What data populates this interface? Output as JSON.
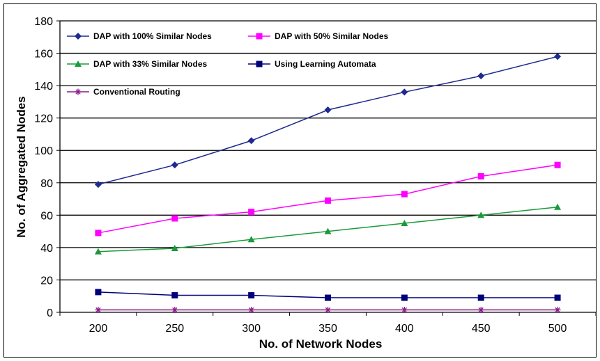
{
  "chart_data": {
    "type": "line",
    "title": "",
    "xlabel": "No. of Network Nodes",
    "ylabel": "No. of Aggregated Nodes",
    "x": [
      200,
      250,
      300,
      350,
      400,
      450,
      500
    ],
    "ylim": [
      0,
      180
    ],
    "yticks": [
      0,
      20,
      40,
      60,
      80,
      100,
      120,
      140,
      160,
      180
    ],
    "grid": "horizontal",
    "legend_position": "top-left",
    "series": [
      {
        "name": "DAP with 100% Similar Nodes",
        "color": "#1f2a8f",
        "marker": "diamond",
        "values": [
          79,
          91,
          106,
          125,
          136,
          146,
          158
        ]
      },
      {
        "name": "DAP with 50% Similar Nodes",
        "color": "#ff00ff",
        "marker": "square",
        "values": [
          49,
          58,
          62,
          69,
          73,
          84,
          91
        ]
      },
      {
        "name": "DAP with 33% Similar Nodes",
        "color": "#1a9a3a",
        "marker": "triangle",
        "values": [
          37.5,
          39.5,
          45,
          50,
          55,
          60,
          65
        ]
      },
      {
        "name": "Using Learning Automata",
        "color": "#00007a",
        "marker": "square",
        "values": [
          12.5,
          10.5,
          10.5,
          9,
          9,
          9,
          9
        ]
      },
      {
        "name": "Conventional Routing",
        "color": "#8b1a8b",
        "marker": "star",
        "values": [
          1.5,
          1.5,
          1.5,
          1.5,
          1.5,
          1.5,
          1.5
        ]
      }
    ]
  }
}
